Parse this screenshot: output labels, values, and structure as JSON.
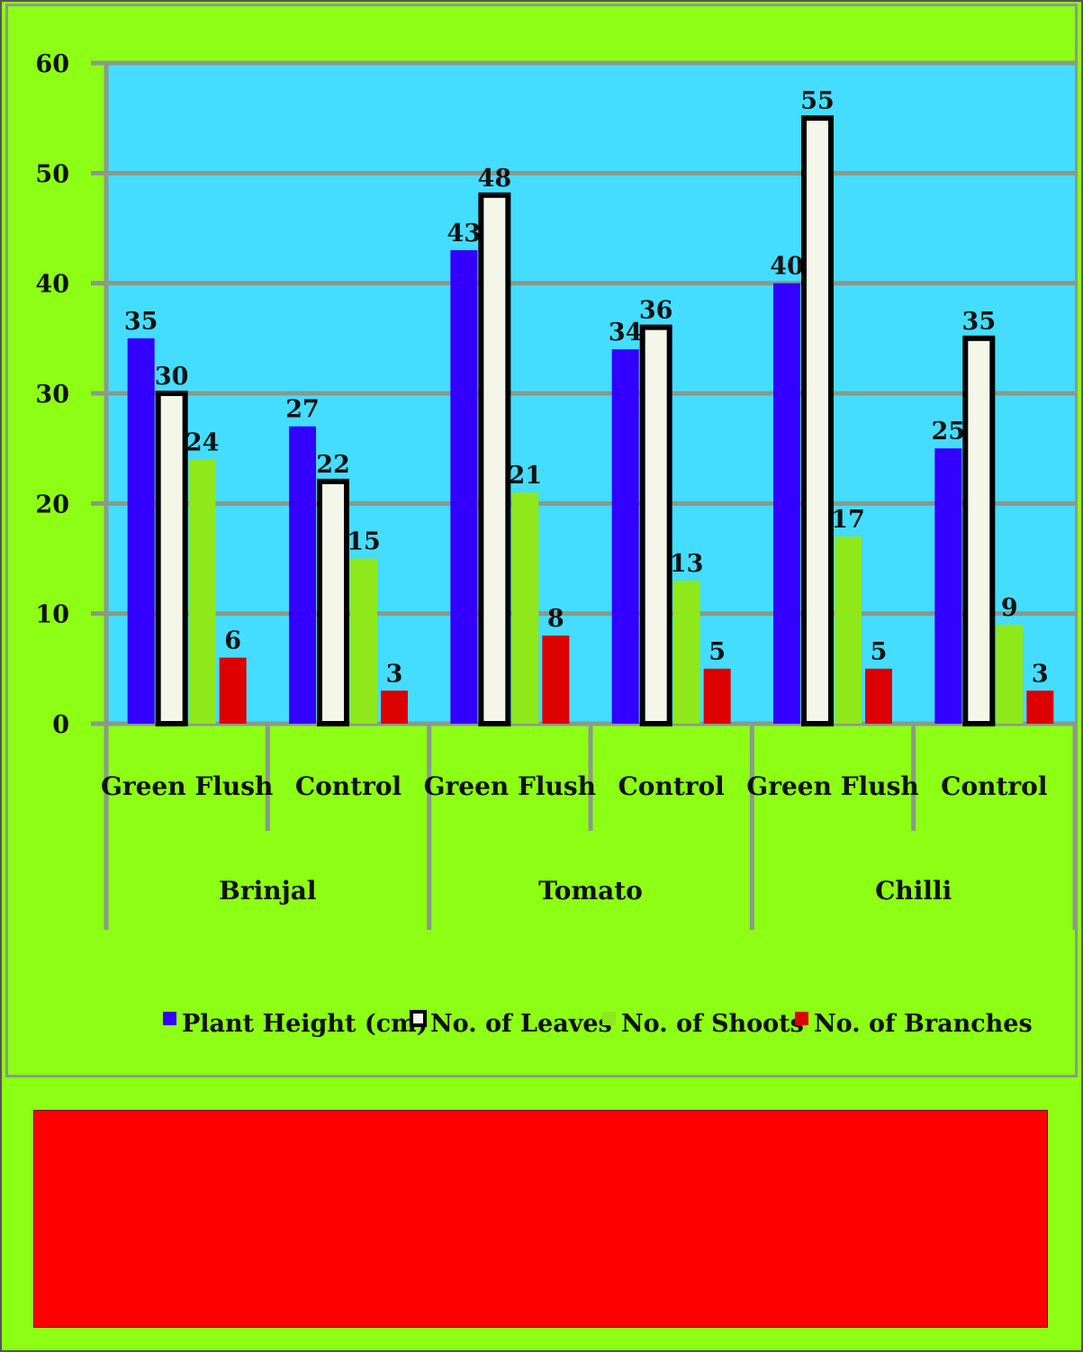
{
  "colors": {
    "background": "#8cff14",
    "plot_area": "#44ddff",
    "grid": "#8a9a8a",
    "bottom_box": "#ff0000"
  },
  "chart_data": {
    "type": "bar",
    "ylim": [
      0,
      60
    ],
    "yticks": [
      0,
      10,
      20,
      30,
      40,
      50,
      60
    ],
    "groups": [
      {
        "name": "Brinjal",
        "categories": [
          "Green Flush",
          "Control"
        ]
      },
      {
        "name": "Tomato",
        "categories": [
          "Green Flush",
          "Control"
        ]
      },
      {
        "name": "Chilli",
        "categories": [
          "Green Flush",
          "Control"
        ]
      }
    ],
    "categories": [
      "Green Flush",
      "Control",
      "Green Flush",
      "Control",
      "Green Flush",
      "Control"
    ],
    "series": [
      {
        "name": "Plant Height (cm)",
        "color": "#3300ff",
        "values": [
          35,
          27,
          43,
          34,
          40,
          25
        ]
      },
      {
        "name": "No. of Leaves",
        "color": "#f4f6ea",
        "stroke": "#000000",
        "values": [
          30,
          22,
          48,
          36,
          55,
          35
        ]
      },
      {
        "name": "No. of Shoots",
        "color": "#8ee81a",
        "values": [
          24,
          15,
          21,
          13,
          17,
          9
        ]
      },
      {
        "name": "No. of Branches",
        "color": "#dd0000",
        "values": [
          6,
          3,
          8,
          5,
          5,
          3
        ]
      }
    ],
    "legend_position": "bottom",
    "grid": true
  }
}
